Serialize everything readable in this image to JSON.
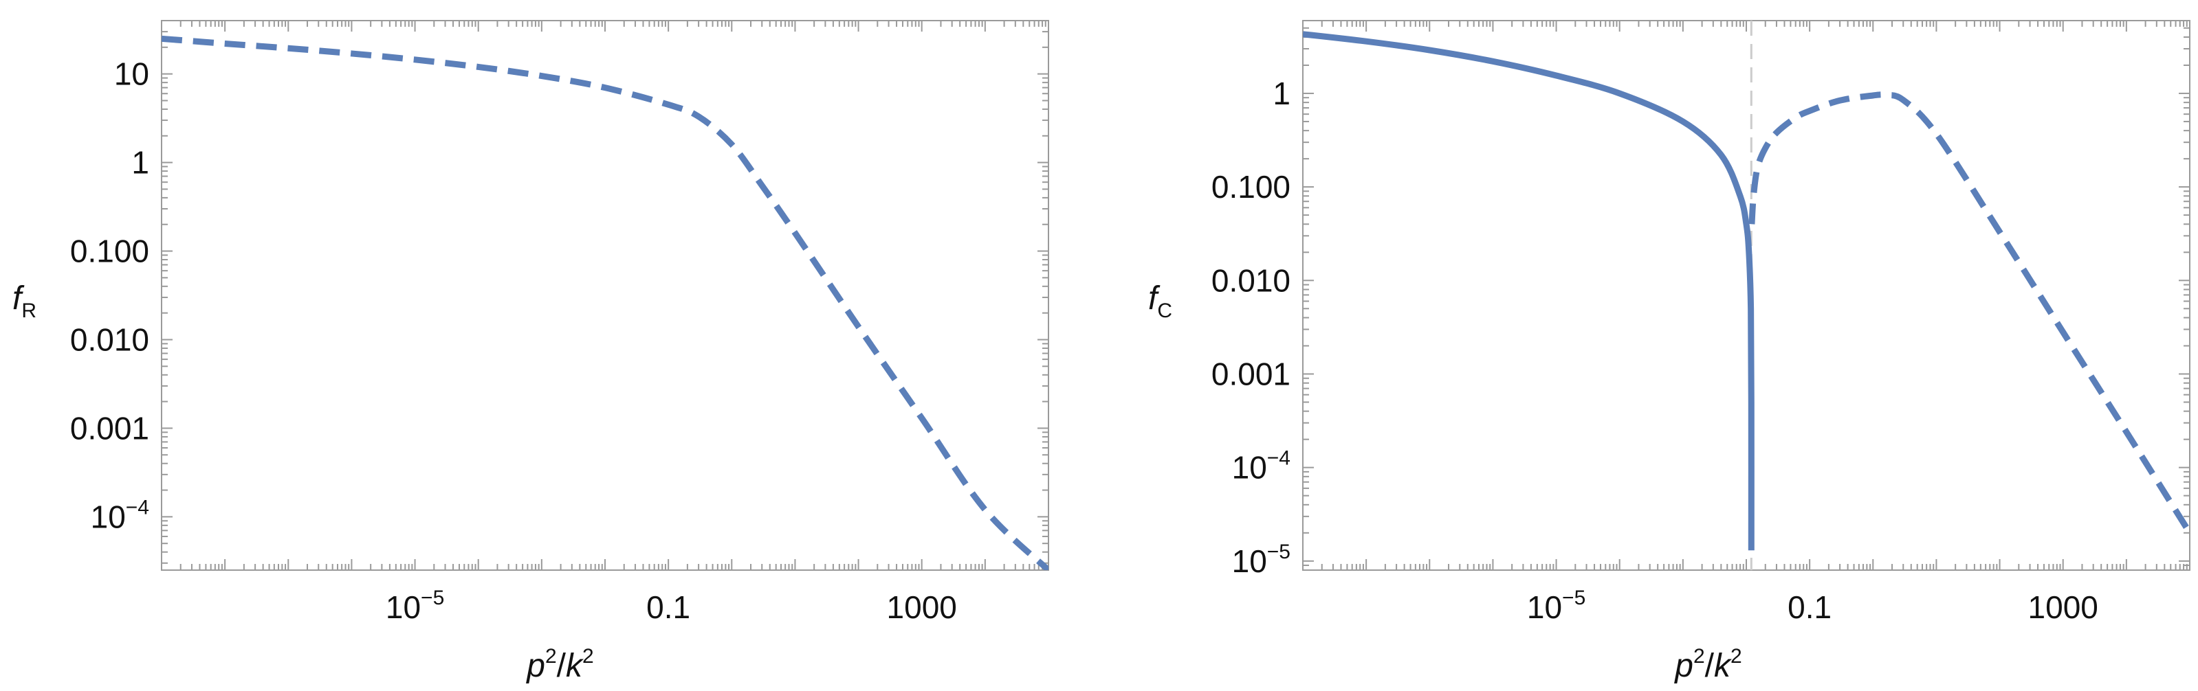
{
  "chart_data": [
    {
      "type": "line",
      "xscale": "log",
      "yscale": "log",
      "xlim": [
        1e-09,
        100000.0
      ],
      "ylim": [
        2.5e-05,
        40
      ],
      "xticks": [
        {
          "value": 1e-05,
          "base": "10",
          "exp": "−5"
        },
        {
          "value": 0.1,
          "base": "0.1",
          "exp": ""
        },
        {
          "value": 1000,
          "base": "1000",
          "exp": ""
        }
      ],
      "yticks": [
        {
          "value": 10,
          "base": "10",
          "exp": ""
        },
        {
          "value": 1,
          "base": "1",
          "exp": ""
        },
        {
          "value": 0.1,
          "base": "0.100",
          "exp": ""
        },
        {
          "value": 0.01,
          "base": "0.010",
          "exp": ""
        },
        {
          "value": 0.001,
          "base": "0.001",
          "exp": ""
        },
        {
          "value": 0.0001,
          "base": "10",
          "exp": "−4"
        }
      ],
      "xlabel": {
        "main": "p",
        "exp1": "2",
        "sep": "/",
        "main2": "k",
        "exp2": "2"
      },
      "ylabel": {
        "main": "f",
        "sub": "R"
      },
      "series": [
        {
          "style": "dashed",
          "color": "#5b7fb9",
          "x": [
            1e-09,
            1e-08,
            1e-07,
            1e-06,
            1e-05,
            0.0001,
            0.001,
            0.01,
            0.1,
            0.3,
            1,
            3,
            10,
            100,
            1000,
            10000,
            100000.0
          ],
          "y": [
            25,
            22,
            19.5,
            17,
            14.5,
            12,
            9.5,
            7,
            4.5,
            3.3,
            1.6,
            0.55,
            0.16,
            0.014,
            0.0013,
            0.00012,
            2.5e-05
          ]
        }
      ]
    },
    {
      "type": "line",
      "xscale": "log",
      "yscale": "log",
      "xlim": [
        1e-09,
        100000.0
      ],
      "ylim": [
        8e-06,
        6
      ],
      "xticks": [
        {
          "value": 1e-05,
          "base": "10",
          "exp": "−5"
        },
        {
          "value": 0.1,
          "base": "0.1",
          "exp": ""
        },
        {
          "value": 1000,
          "base": "1000",
          "exp": ""
        }
      ],
      "yticks": [
        {
          "value": 1,
          "base": "1",
          "exp": ""
        },
        {
          "value": 0.1,
          "base": "0.100",
          "exp": ""
        },
        {
          "value": 0.01,
          "base": "0.010",
          "exp": ""
        },
        {
          "value": 0.001,
          "base": "0.001",
          "exp": ""
        },
        {
          "value": 0.0001,
          "base": "10",
          "exp": "−4"
        },
        {
          "value": 1e-05,
          "base": "10",
          "exp": "−5"
        }
      ],
      "xlabel": {
        "main": "p",
        "exp1": "2",
        "sep": "/",
        "main2": "k",
        "exp2": "2"
      },
      "ylabel": {
        "main": "f",
        "sub": "C"
      },
      "vline": {
        "x": 0.012,
        "color": "#cccccc",
        "style": "dashed"
      },
      "series": [
        {
          "style": "solid",
          "color": "#5b7fb9",
          "x": [
            1e-09,
            1e-08,
            1e-07,
            1e-06,
            1e-05,
            0.0001,
            0.001,
            0.004,
            0.008,
            0.01,
            0.011,
            0.0118,
            0.012,
            0.012
          ],
          "y": [
            4.3,
            3.6,
            2.9,
            2.2,
            1.55,
            1.0,
            0.5,
            0.22,
            0.08,
            0.04,
            0.02,
            0.005,
            0.0005,
            1.3e-05
          ]
        },
        {
          "style": "dashed",
          "color": "#5b7fb9",
          "x": [
            0.0122,
            0.013,
            0.015,
            0.02,
            0.03,
            0.06,
            0.1,
            0.3,
            1,
            1.6,
            3,
            10,
            100,
            1000,
            10000,
            100000.0
          ],
          "y": [
            0.04,
            0.08,
            0.16,
            0.26,
            0.38,
            0.55,
            0.65,
            0.84,
            0.95,
            0.96,
            0.85,
            0.37,
            0.033,
            0.0028,
            0.00024,
            2e-05
          ]
        }
      ]
    }
  ]
}
